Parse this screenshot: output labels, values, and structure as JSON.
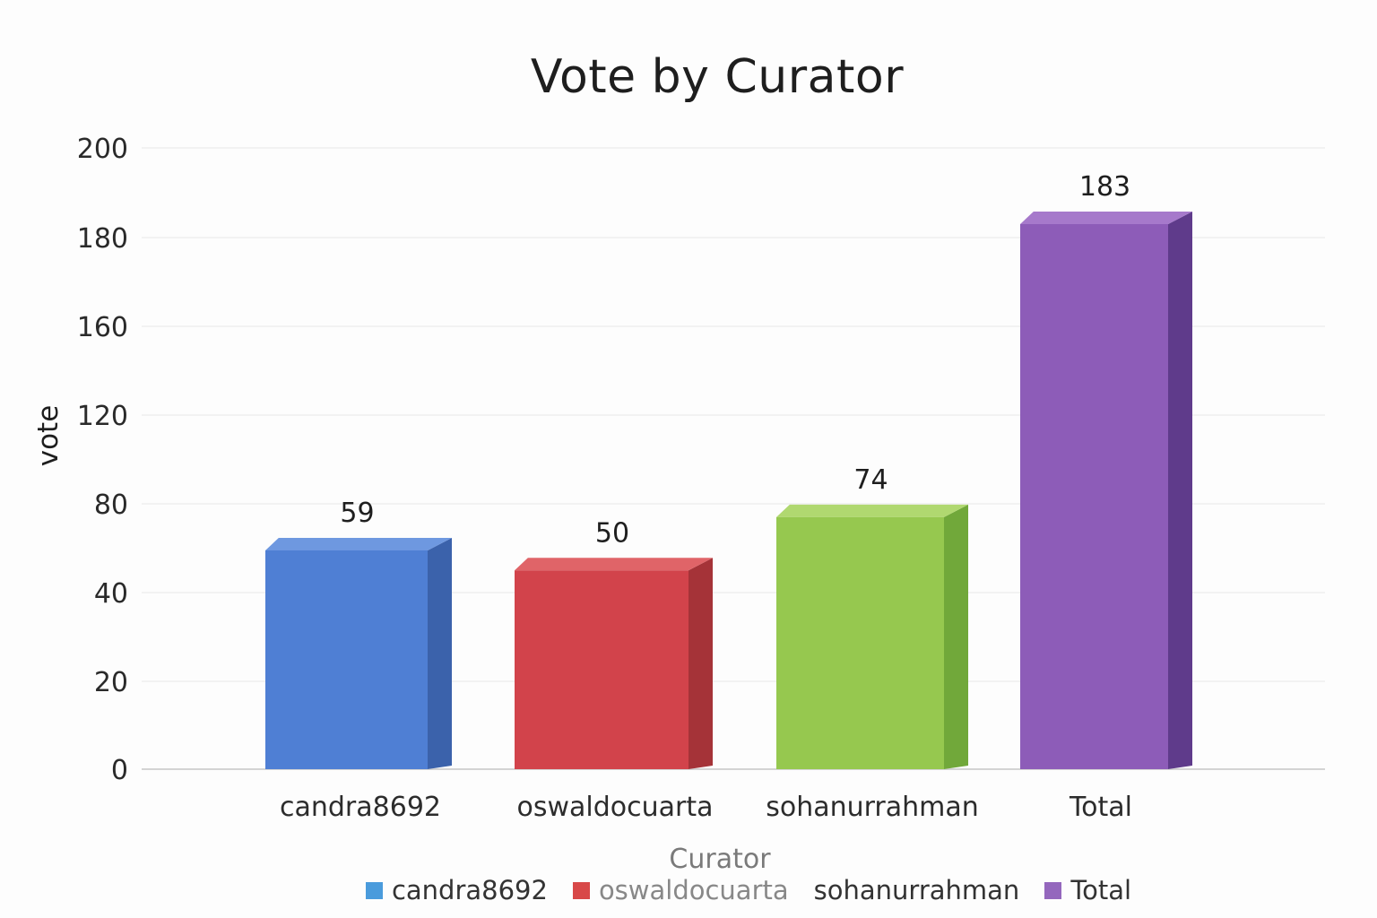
{
  "chart_data": {
    "type": "bar",
    "title": "Vote by Curator",
    "xlabel": "Curator",
    "ylabel": "vote",
    "categories": [
      "candra8692",
      "oswaldocuarta",
      "sohanurrahman",
      "Total"
    ],
    "values": [
      59,
      50,
      74,
      183
    ],
    "data_labels": [
      "59",
      "50",
      "74",
      "183"
    ],
    "y_ticks": [
      "0",
      "20",
      "40",
      "80",
      "120",
      "160",
      "180",
      "200"
    ],
    "colors": [
      "#4f7fd4",
      "#d2434b",
      "#96c84f",
      "#8d5cb8"
    ],
    "side_colors": [
      "#3b62ab",
      "#a53338",
      "#71a83a",
      "#5f3b8b"
    ],
    "top_colors": [
      "#6e98e0",
      "#e06468",
      "#b0d870",
      "#a679cb"
    ],
    "grid": true,
    "style": "3d",
    "legend_position": "bottom-center",
    "legend": [
      {
        "label": "candra8692",
        "color": "#4a9bdc",
        "swatch": true
      },
      {
        "label": "oswaldocuarta",
        "color": "#d84848",
        "swatch": true
      },
      {
        "label": "sohanurrahman",
        "color": "",
        "swatch": false
      },
      {
        "label": "Total",
        "color": "#9467bd",
        "swatch": true
      }
    ]
  }
}
